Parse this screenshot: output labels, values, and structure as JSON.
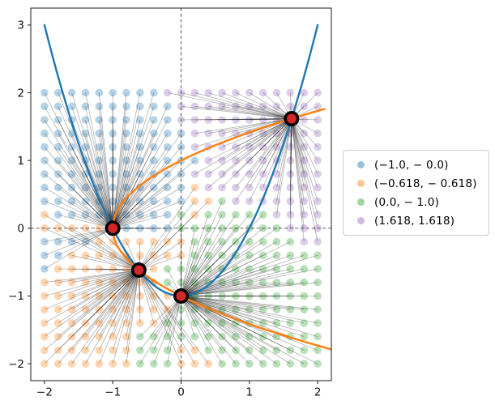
{
  "chart_data": {
    "type": "scatter",
    "description": "Basins of attraction: grid of starting points colored by the root each converges to, with straight convergence lines, two parabola curves and four root markers.",
    "xlim": [
      -2.2,
      2.2
    ],
    "ylim": [
      -2.25,
      3.25
    ],
    "xticks": {
      "values": [
        -2,
        -1,
        0,
        1,
        2
      ],
      "labels": [
        "−2",
        "−1",
        "0",
        "1",
        "2"
      ]
    },
    "yticks": {
      "values": [
        -2,
        -1,
        0,
        1,
        2,
        3
      ],
      "labels": [
        "−2",
        "−1",
        "0",
        "1",
        "2",
        "3"
      ]
    },
    "zero_lines": {
      "x": 0,
      "y": 0,
      "style": "dashed",
      "color": "#444444"
    },
    "grid_points": {
      "x_start": -2,
      "x_end": 2,
      "y_start": -2,
      "y_end": 2,
      "step": 0.2,
      "count": 441,
      "dot_radius": 4.8,
      "dot_alpha": 0.33
    },
    "basin_rows_note": "rows listed top to bottom: first row y=2.0, last row y=-2.0; chars B,O,G,P = basin of each root",
    "basins": [
      "BBBBBBBBBPPPPPPPPPPPP",
      "BBBBBBBBBBPPPPPPPPPPP",
      "BBBBBBBBBBPPPPPPPPPPP",
      "BBBBBBBBBBBPPPPPPPPPP",
      "BBBBBBBBBBBPPPPPPPPPP",
      "BBBBBBBBBBBBPPPPPPPPP",
      "BBBBBBBBBBBPPPPPPPPPP",
      "BBBBBBBBBBBOPPPPPPPPP",
      "BBBBBBBBBBBOOGPPPPPPP",
      "OBBBBBBBBBGOGGGGGPPPP",
      "OOOOOBBBBBGGGGGGGGPPP",
      "BBBBOOOOOOOGGGGGGGGPP",
      "BBOOOOOOOOOGGGGGGGGGG",
      "BOOOOOOOOGGGGGGGGGGGG",
      "OOOOOOOOOGGGGGGGGGGGG",
      "OOOOOOOOOOGGGGGGGGGGG",
      "OOOOOOOOOOGGGGGGGGGGG",
      "OOOOOOOOOGGGGGGGGGGGG",
      "OOOOOOOGGGGGGGGGGGGGG",
      "OOOOOOOGGGOOGGGGGGGGG",
      "OOOOOOOGGGOOOGGGGGGGG"
    ],
    "basin_colors": {
      "B": "#1f77b4",
      "O": "#ff7f0e",
      "G": "#2ca02c",
      "P": "#9467bd"
    },
    "convergence_lines": {
      "color": "#000000",
      "opacity": 0.3,
      "width": 0.8
    },
    "roots": [
      {
        "code": "B",
        "x": -1.0,
        "y": 0.0,
        "label": "(−1.0, − 0.0)"
      },
      {
        "code": "O",
        "x": -0.618,
        "y": -0.618,
        "label": "(−0.618, − 0.618)"
      },
      {
        "code": "G",
        "x": 0.0,
        "y": -1.0,
        "label": "(0.0, − 1.0)"
      },
      {
        "code": "P",
        "x": 1.618,
        "y": 1.618,
        "label": "(1.618, 1.618)"
      }
    ],
    "root_marker": {
      "outer_color": "#000000",
      "outer_radius": 9.5,
      "inner_color": "#d62728",
      "inner_radius": 6
    },
    "curves": [
      {
        "formula": "y = x^2 - 1",
        "color": "#1f77b4",
        "width": 2.4
      },
      {
        "formula": "x = y^2 - 1",
        "color": "#ff7f0e",
        "width": 2.4
      }
    ],
    "legend": {
      "swatch_alpha": 0.45,
      "items": [
        {
          "code": "B",
          "label": "(−1.0, − 0.0)"
        },
        {
          "code": "O",
          "label": "(−0.618, − 0.618)"
        },
        {
          "code": "G",
          "label": "(0.0, − 1.0)"
        },
        {
          "code": "P",
          "label": "(1.618, 1.618)"
        }
      ]
    }
  }
}
